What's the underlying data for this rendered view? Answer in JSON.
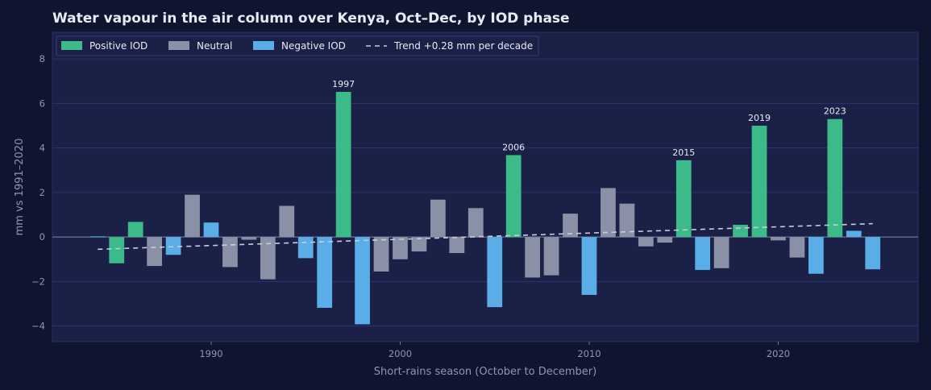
{
  "chart_data": {
    "type": "bar",
    "title": "Water vapour in the air column over Kenya, Oct–Dec, by IOD phase",
    "xlabel": "Short-rains season (October to December)",
    "ylabel": "mm vs 1991–2020",
    "xlim": [
      1981.6,
      2027.4
    ],
    "ylim": [
      -4.7,
      9.2
    ],
    "xticks": [
      1990,
      2000,
      2010,
      2020
    ],
    "yticks": [
      -4,
      -2,
      0,
      2,
      4,
      6,
      8
    ],
    "grid": true,
    "legend_position": "top-left",
    "colors": {
      "positive": "#3dba8a",
      "neutral": "#8a91a6",
      "negative": "#5aade6",
      "trend": "#c8ccd8",
      "plot_bg": "#1b2047",
      "grid": "#2c3470"
    },
    "legend": [
      {
        "key": "positive",
        "label": "Positive IOD"
      },
      {
        "key": "neutral",
        "label": "Neutral"
      },
      {
        "key": "negative",
        "label": "Negative IOD"
      },
      {
        "key": "trend",
        "label": "Trend +0.28 mm per decade"
      }
    ],
    "years": [
      1984,
      1985,
      1986,
      1987,
      1988,
      1989,
      1990,
      1991,
      1992,
      1993,
      1994,
      1995,
      1996,
      1997,
      1998,
      1999,
      2000,
      2001,
      2002,
      2003,
      2004,
      2005,
      2006,
      2007,
      2008,
      2009,
      2010,
      2011,
      2012,
      2013,
      2014,
      2015,
      2016,
      2017,
      2018,
      2019,
      2020,
      2021,
      2022,
      2023,
      2024,
      2025
    ],
    "values": [
      0.03,
      -1.18,
      0.68,
      -1.3,
      -0.8,
      1.9,
      0.65,
      -1.35,
      -0.12,
      -1.9,
      1.4,
      -0.95,
      -3.18,
      6.52,
      -3.92,
      -1.55,
      -1.0,
      -0.65,
      1.68,
      -0.72,
      1.3,
      -3.15,
      3.68,
      -1.82,
      -1.72,
      1.05,
      -2.6,
      2.2,
      1.5,
      -0.42,
      -0.25,
      3.45,
      -1.48,
      -1.4,
      0.55,
      5.0,
      -0.15,
      -0.92,
      -1.65,
      5.3,
      0.28,
      -1.45
    ],
    "phases": [
      "negative",
      "positive",
      "positive",
      "neutral",
      "negative",
      "neutral",
      "negative",
      "neutral",
      "neutral",
      "neutral",
      "neutral",
      "negative",
      "negative",
      "positive",
      "negative",
      "neutral",
      "neutral",
      "neutral",
      "neutral",
      "neutral",
      "neutral",
      "negative",
      "positive",
      "neutral",
      "neutral",
      "neutral",
      "negative",
      "neutral",
      "neutral",
      "neutral",
      "neutral",
      "positive",
      "negative",
      "neutral",
      "positive",
      "positive",
      "neutral",
      "neutral",
      "negative",
      "positive",
      "negative",
      "negative"
    ],
    "annotations": [
      {
        "year": 1997,
        "label": "1997"
      },
      {
        "year": 2006,
        "label": "2006"
      },
      {
        "year": 2015,
        "label": "2015"
      },
      {
        "year": 2019,
        "label": "2019"
      },
      {
        "year": 2023,
        "label": "2023"
      }
    ],
    "trend": {
      "x": [
        1984,
        2025
      ],
      "y": [
        -0.55,
        0.6
      ]
    }
  }
}
